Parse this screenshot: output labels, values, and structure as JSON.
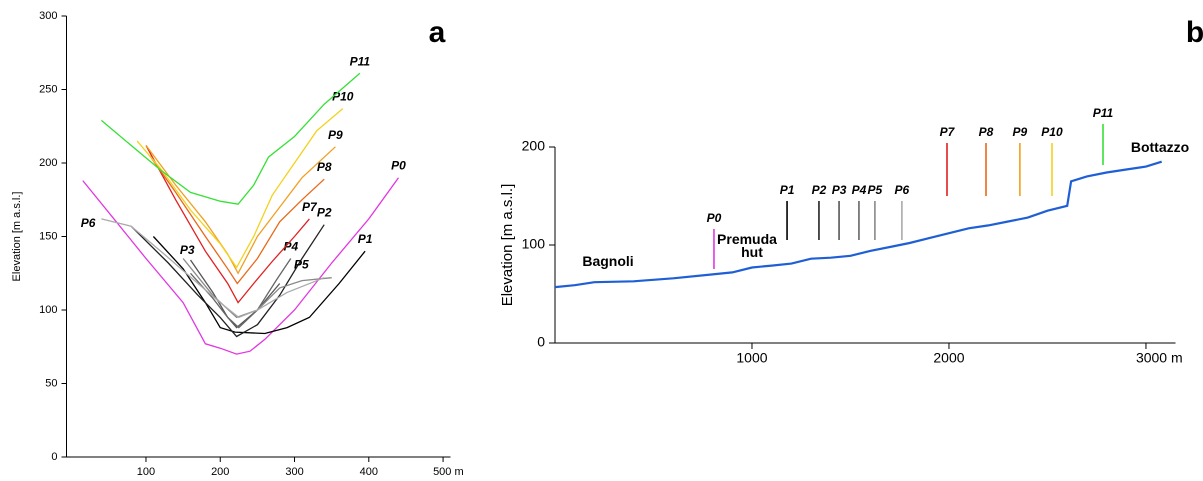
{
  "chart_data": [
    {
      "type": "line",
      "panel_label": "a",
      "y_label": "Elevation [m a.s.l.]",
      "xlim": [
        -7,
        510
      ],
      "xticks": [
        100,
        200,
        300,
        400,
        {
          "value": 500,
          "label": "500 m"
        }
      ],
      "ylim": [
        0,
        300
      ],
      "yticks": [
        0,
        50,
        100,
        150,
        200,
        250,
        300
      ],
      "series": [
        {
          "name": "P0",
          "color": "#e236e2",
          "x": [
            15,
            60,
            100,
            150,
            180,
            200,
            222,
            240,
            260,
            300,
            350,
            400,
            440
          ],
          "values": [
            188,
            160,
            135,
            105,
            77,
            74,
            70,
            72,
            80,
            100,
            132,
            162,
            190
          ]
        },
        {
          "name": "P1",
          "color": "#000000",
          "x": [
            110,
            150,
            180,
            200,
            220,
            260,
            290,
            320,
            360,
            395
          ],
          "values": [
            150,
            128,
            105,
            88,
            85,
            84,
            88,
            95,
            118,
            140
          ]
        },
        {
          "name": "P2",
          "color": "#222222",
          "x": [
            80,
            130,
            170,
            200,
            222,
            250,
            280,
            310,
            340
          ],
          "values": [
            157,
            132,
            110,
            95,
            82,
            90,
            110,
            135,
            158
          ]
        },
        {
          "name": "P3",
          "color": "#555555",
          "x": [
            160,
            190,
            210,
            222,
            250,
            280
          ],
          "values": [
            134,
            112,
            95,
            88,
            100,
            118
          ]
        },
        {
          "name": "P4",
          "color": "#666666",
          "x": [
            160,
            190,
            210,
            225,
            250,
            275,
            295
          ],
          "values": [
            125,
            108,
            95,
            88,
            100,
            120,
            135
          ]
        },
        {
          "name": "P5",
          "color": "#888888",
          "x": [
            150,
            190,
            222,
            250,
            280,
            310,
            350
          ],
          "values": [
            135,
            110,
            95,
            100,
            115,
            120,
            122
          ]
        },
        {
          "name": "P6",
          "color": "#aaaaaa",
          "x": [
            40,
            80,
            120,
            170,
            200,
            225,
            250,
            290,
            340
          ],
          "values": [
            162,
            157,
            140,
            118,
            105,
            95,
            100,
            112,
            122
          ]
        },
        {
          "name": "P7",
          "color": "#e02020",
          "x": [
            100,
            140,
            180,
            210,
            224,
            245,
            270,
            300,
            320
          ],
          "values": [
            212,
            175,
            140,
            118,
            105,
            118,
            133,
            150,
            162
          ]
        },
        {
          "name": "P8",
          "color": "#e8691a",
          "x": [
            105,
            140,
            180,
            210,
            223,
            250,
            280,
            310,
            340
          ],
          "values": [
            205,
            180,
            150,
            128,
            118,
            135,
            160,
            175,
            189
          ]
        },
        {
          "name": "P9",
          "color": "#f0a020",
          "x": [
            100,
            140,
            180,
            210,
            224,
            250,
            280,
            310,
            355
          ],
          "values": [
            212,
            185,
            160,
            138,
            125,
            150,
            170,
            190,
            211
          ]
        },
        {
          "name": "P10",
          "color": "#f2d21e",
          "x": [
            88,
            120,
            160,
            200,
            222,
            245,
            270,
            300,
            330,
            365
          ],
          "values": [
            215,
            196,
            168,
            145,
            129,
            150,
            178,
            200,
            222,
            237
          ]
        },
        {
          "name": "P11",
          "color": "#36e036",
          "x": [
            40,
            80,
            120,
            160,
            200,
            224,
            245,
            265,
            300,
            340,
            388
          ],
          "values": [
            229,
            212,
            195,
            180,
            174,
            172,
            185,
            204,
            218,
            240,
            261
          ]
        }
      ]
    },
    {
      "type": "line",
      "panel_label": "b",
      "y_label": "Elevation [m a.s.l.]",
      "color": "#1f5fd6",
      "xlim": [
        0,
        3150
      ],
      "xticks": [
        1000,
        2000,
        {
          "value": 3000,
          "label": "3000 m"
        }
      ],
      "ylim": [
        0,
        200
      ],
      "yticks": [
        0,
        100,
        200
      ],
      "x": [
        0,
        100,
        200,
        400,
        600,
        800,
        900,
        1000,
        1100,
        1200,
        1300,
        1400,
        1500,
        1600,
        1700,
        1800,
        1900,
        2000,
        2100,
        2200,
        2300,
        2400,
        2500,
        2600,
        2620,
        2700,
        2800,
        2900,
        3000,
        3080
      ],
      "values": [
        57,
        59,
        62,
        63,
        66,
        70,
        72,
        77,
        79,
        81,
        86,
        87,
        89,
        94,
        98,
        102,
        107,
        112,
        117,
        120,
        124,
        128,
        135,
        140,
        165,
        170,
        174,
        177,
        180,
        185
      ],
      "markers": [
        {
          "label": "P0",
          "x": 807,
          "color": "#e236e2"
        },
        {
          "label": "P1",
          "x": 1178,
          "color": "#000000"
        },
        {
          "label": "P2",
          "x": 1340,
          "color": "#222222"
        },
        {
          "label": "P3",
          "x": 1442,
          "color": "#555555"
        },
        {
          "label": "P4",
          "x": 1543,
          "color": "#666666"
        },
        {
          "label": "P5",
          "x": 1624,
          "color": "#888888"
        },
        {
          "label": "P6",
          "x": 1761,
          "color": "#aaaaaa"
        },
        {
          "label": "P7",
          "x": 1990,
          "color": "#e02020"
        },
        {
          "label": "P8",
          "x": 2188,
          "color": "#e8691a"
        },
        {
          "label": "P9",
          "x": 2360,
          "color": "#f0a020"
        },
        {
          "label": "P10",
          "x": 2523,
          "color": "#f2d21e"
        },
        {
          "label": "P11",
          "x": 2782,
          "color": "#36e036"
        }
      ],
      "annotations": [
        {
          "text": "Bagnoli"
        },
        {
          "text": [
            "Premuda",
            "hut"
          ]
        },
        {
          "text": "Bottazzo"
        }
      ]
    }
  ]
}
